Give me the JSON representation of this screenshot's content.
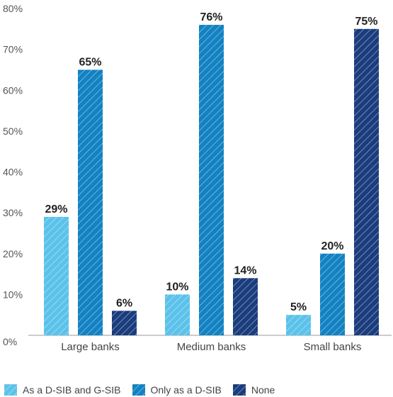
{
  "chart_data": {
    "type": "bar",
    "categories": [
      "Large banks",
      "Medium banks",
      "Small banks"
    ],
    "series": [
      {
        "name": "As a D-SIB and G-SIB",
        "values": [
          29,
          10,
          5
        ],
        "color": "#5bc2ea"
      },
      {
        "name": "Only as a D-SIB",
        "values": [
          65,
          76,
          20
        ],
        "color": "#1282c2"
      },
      {
        "name": "None",
        "values": [
          6,
          14,
          75
        ],
        "color": "#1b3d7e"
      }
    ],
    "data_labels": [
      [
        "29%",
        "10%",
        "5%"
      ],
      [
        "65%",
        "76%",
        "20%"
      ],
      [
        "6%",
        "14%",
        "75%"
      ]
    ],
    "yticks": [
      "0%",
      "10%",
      "20%",
      "30%",
      "40%",
      "50%",
      "60%",
      "70%",
      "80%"
    ],
    "ylim": [
      0,
      80
    ],
    "grid": false,
    "legend_position": "bottom",
    "bar_pattern": "diagonal-hatch",
    "title": "",
    "xlabel": "",
    "ylabel": ""
  }
}
